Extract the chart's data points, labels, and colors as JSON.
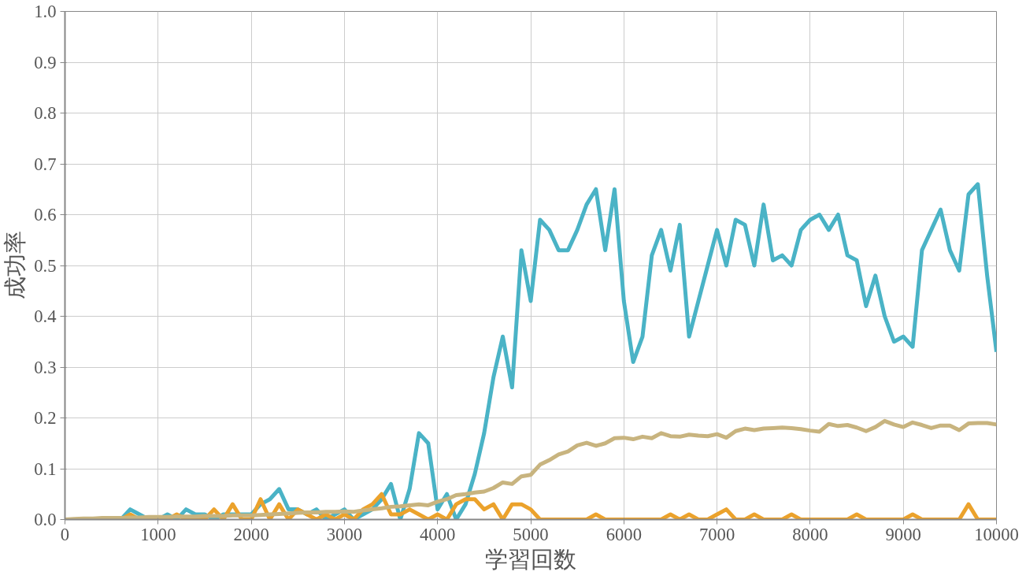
{
  "chart_data": {
    "type": "line",
    "xlabel": "学習回数",
    "ylabel": "成功率",
    "x": [
      0,
      100,
      200,
      300,
      400,
      500,
      600,
      700,
      800,
      900,
      1000,
      1100,
      1200,
      1300,
      1400,
      1500,
      1600,
      1700,
      1800,
      1900,
      2000,
      2100,
      2200,
      2300,
      2400,
      2500,
      2600,
      2700,
      2800,
      2900,
      3000,
      3100,
      3200,
      3300,
      3400,
      3500,
      3600,
      3700,
      3800,
      3900,
      4000,
      4100,
      4200,
      4300,
      4400,
      4500,
      4600,
      4700,
      4800,
      4900,
      5000,
      5100,
      5200,
      5300,
      5400,
      5500,
      5600,
      5700,
      5800,
      5900,
      6000,
      6100,
      6200,
      6300,
      6400,
      6500,
      6600,
      6700,
      6800,
      6900,
      7000,
      7100,
      7200,
      7300,
      7400,
      7500,
      7600,
      7700,
      7800,
      7900,
      8000,
      8100,
      8200,
      8300,
      8400,
      8500,
      8600,
      8700,
      8800,
      8900,
      9000,
      9100,
      9200,
      9300,
      9400,
      9500,
      9600,
      9700,
      9800,
      9900,
      10000
    ],
    "series": [
      {
        "color": "#4ab3c6",
        "values": [
          null,
          null,
          null,
          null,
          null,
          0,
          0,
          0.02,
          0.01,
          0,
          0,
          0.01,
          0,
          0.02,
          0.01,
          0.01,
          0,
          0.01,
          0.01,
          0.01,
          0.01,
          0.03,
          0.04,
          0.06,
          0.02,
          0.02,
          0.01,
          0.02,
          0,
          0.01,
          0.02,
          0,
          0.01,
          0.02,
          0.04,
          0.07,
          0,
          0.06,
          0.17,
          0.15,
          0.02,
          0.05,
          0,
          0.03,
          0.09,
          0.17,
          0.28,
          0.36,
          0.26,
          0.53,
          0.43,
          0.59,
          0.57,
          0.53,
          0.53,
          0.57,
          0.62,
          0.65,
          0.53,
          0.65,
          0.43,
          0.31,
          0.36,
          0.52,
          0.57,
          0.49,
          0.58,
          0.36,
          0.43,
          0.5,
          0.57,
          0.5,
          0.59,
          0.58,
          0.5,
          0.62,
          0.51,
          0.52,
          0.5,
          0.57,
          0.59,
          0.6,
          0.57,
          0.6,
          0.52,
          0.51,
          0.42,
          0.48,
          0.4,
          0.35,
          0.36,
          0.34,
          0.53,
          0.57,
          0.61,
          0.53,
          0.49,
          0.64,
          0.66,
          0.48,
          0.33
        ]
      },
      {
        "color": "#eba22c",
        "values": [
          null,
          null,
          null,
          null,
          null,
          0,
          0,
          0.01,
          0,
          0,
          0,
          0,
          0.01,
          0,
          0,
          0,
          0.02,
          0,
          0.03,
          0,
          0,
          0.04,
          0,
          0.03,
          0,
          0.02,
          0.01,
          0,
          0.01,
          0,
          0.01,
          0,
          0.02,
          0.03,
          0.05,
          0.01,
          0.01,
          0.02,
          0.01,
          0,
          0.01,
          0,
          0.03,
          0.04,
          0.04,
          0.02,
          0.03,
          0,
          0.03,
          0.03,
          0.02,
          0,
          0,
          0,
          0,
          0,
          0,
          0.01,
          0,
          0,
          0,
          0,
          0,
          0,
          0,
          0.01,
          0,
          0.01,
          0,
          0,
          0.01,
          0.02,
          0,
          0,
          0.01,
          0,
          0,
          0,
          0.01,
          0,
          0,
          0,
          0,
          0,
          0,
          0.01,
          0,
          0,
          0,
          0,
          0,
          0.01,
          0,
          0,
          0,
          0,
          0,
          0.03,
          0,
          0,
          0
        ]
      },
      {
        "color": "#c8b47f",
        "values": [
          0,
          0.001,
          0.002,
          0.002,
          0.003,
          0.003,
          0.003,
          0.004,
          0.004,
          0.005,
          0.005,
          0.005,
          0.006,
          0.006,
          0.006,
          0.007,
          0.007,
          0.007,
          0.008,
          0.008,
          0.008,
          0.009,
          0.01,
          0.011,
          0.012,
          0.013,
          0.014,
          0.014,
          0.015,
          0.015,
          0.016,
          0.015,
          0.018,
          0.02,
          0.022,
          0.025,
          0.026,
          0.028,
          0.03,
          0.028,
          0.035,
          0.04,
          0.048,
          0.05,
          0.053,
          0.055,
          0.062,
          0.073,
          0.07,
          0.085,
          0.088,
          0.108,
          0.117,
          0.128,
          0.134,
          0.146,
          0.151,
          0.145,
          0.15,
          0.16,
          0.161,
          0.158,
          0.163,
          0.16,
          0.17,
          0.164,
          0.163,
          0.167,
          0.165,
          0.164,
          0.168,
          0.161,
          0.174,
          0.179,
          0.176,
          0.179,
          0.18,
          0.181,
          0.18,
          0.178,
          0.175,
          0.173,
          0.188,
          0.184,
          0.186,
          0.181,
          0.174,
          0.182,
          0.194,
          0.187,
          0.182,
          0.191,
          0.186,
          0.18,
          0.185,
          0.185,
          0.176,
          0.189,
          0.19,
          0.19,
          0.187
        ]
      }
    ],
    "xlim": [
      0,
      10000
    ],
    "xticks": [
      0,
      1000,
      2000,
      3000,
      4000,
      5000,
      6000,
      7000,
      8000,
      9000,
      10000
    ],
    "ylim": [
      0,
      1
    ],
    "yticks": [
      {
        "value": 0,
        "label": "0.0"
      },
      {
        "value": 0.1,
        "label": "0.1"
      },
      {
        "value": 0.2,
        "label": "0.2"
      },
      {
        "value": 0.3,
        "label": "0.3"
      },
      {
        "value": 0.4,
        "label": "0.4"
      },
      {
        "value": 0.5,
        "label": "0.5"
      },
      {
        "value": 0.6,
        "label": "0.6"
      },
      {
        "value": 0.7,
        "label": "0.7"
      },
      {
        "value": 0.8,
        "label": "0.8"
      },
      {
        "value": 0.9,
        "label": "0.9"
      },
      {
        "value": 1,
        "label": "1.0"
      }
    ],
    "grid": true,
    "marker": "none",
    "line_style": "solid"
  }
}
